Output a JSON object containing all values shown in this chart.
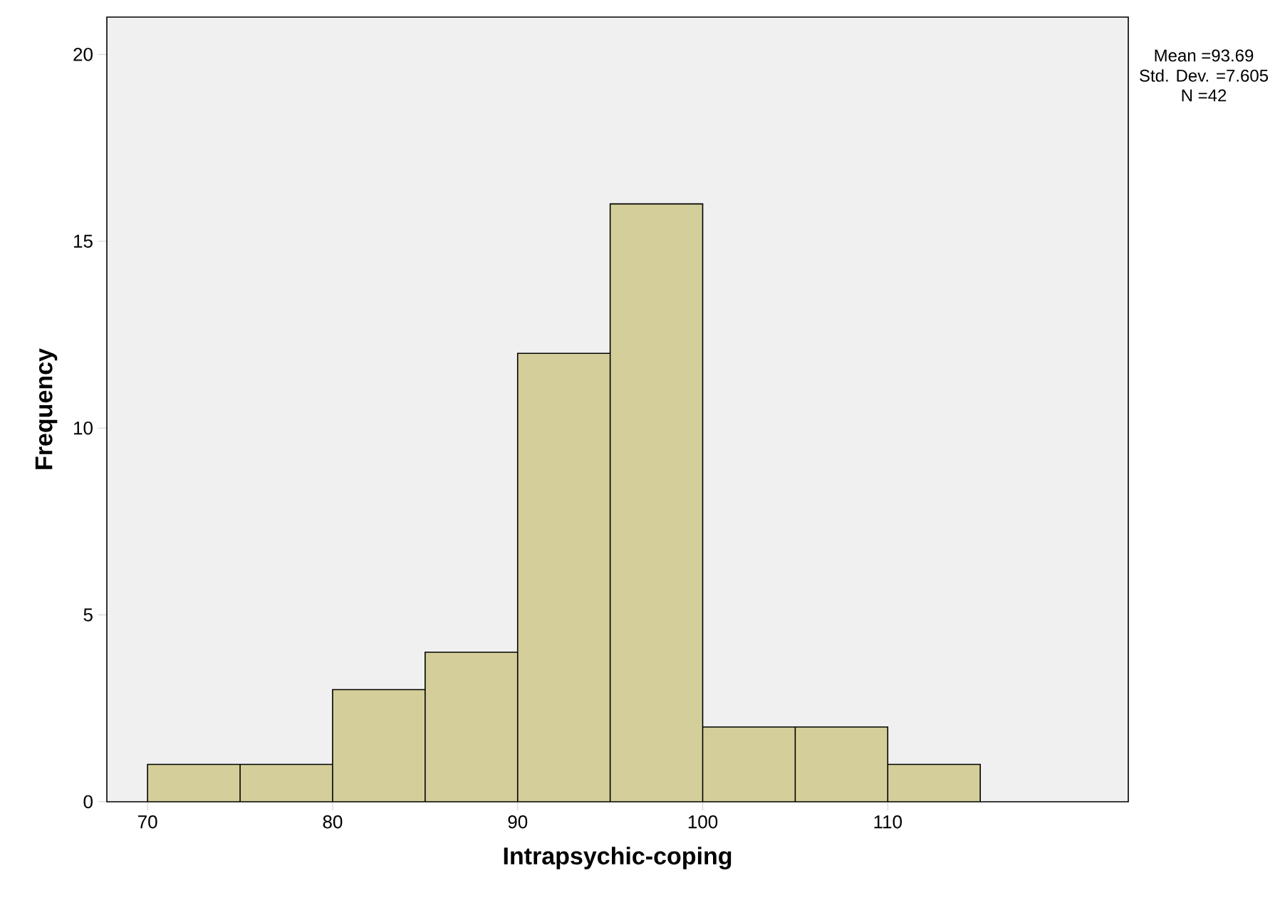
{
  "chart_data": {
    "type": "histogram",
    "xlabel": "Intrapsychic-coping",
    "ylabel": "Frequency",
    "bins": [
      70,
      75,
      80,
      85,
      90,
      95,
      100,
      105,
      110,
      115
    ],
    "values": [
      1,
      1,
      3,
      4,
      12,
      16,
      2,
      2,
      1
    ],
    "color": "#d4cf9a",
    "xlim": [
      67.8,
      123
    ],
    "ylim": [
      0,
      21
    ],
    "xticks": [
      70,
      80,
      90,
      100,
      110
    ],
    "yticks": [
      0,
      5,
      10,
      15,
      20
    ],
    "annotations": [
      "Mean =93.69",
      "Std. Dev. =7.605",
      "N =42"
    ]
  }
}
